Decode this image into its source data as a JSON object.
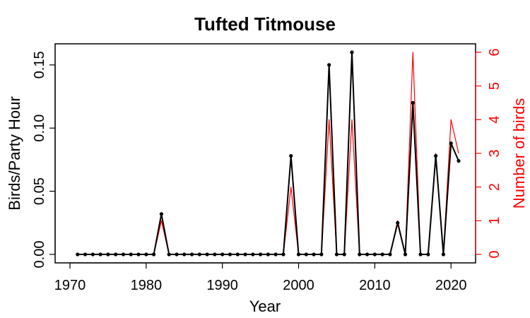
{
  "chart_data": {
    "type": "line",
    "title": "Tufted Titmouse",
    "xlabel": "Year",
    "ylabel": "Birds/Party Hour",
    "ylabel_right": "Number of birds",
    "xlim": [
      1970,
      2021
    ],
    "ylim": [
      0,
      0.16
    ],
    "ylim_right": [
      0,
      6
    ],
    "x_ticks": [
      1970,
      1980,
      1990,
      2000,
      2010,
      2020
    ],
    "y_ticks": [
      "0.00",
      "0.05",
      "0.10",
      "0.15"
    ],
    "y_ticks_right": [
      "0",
      "1",
      "2",
      "3",
      "4",
      "5",
      "6"
    ],
    "grid": false,
    "colors": {
      "left": "#000000",
      "right": "#ff0000"
    },
    "x": [
      1971,
      1972,
      1973,
      1974,
      1975,
      1976,
      1977,
      1978,
      1979,
      1980,
      1981,
      1982,
      1983,
      1984,
      1985,
      1986,
      1987,
      1988,
      1989,
      1990,
      1991,
      1992,
      1993,
      1994,
      1995,
      1996,
      1997,
      1998,
      1999,
      2000,
      2001,
      2002,
      2003,
      2004,
      2005,
      2006,
      2007,
      2008,
      2009,
      2010,
      2011,
      2012,
      2013,
      2014,
      2015,
      2016,
      2017,
      2018,
      2019,
      2020,
      2021
    ],
    "series": [
      {
        "axis": "left",
        "values": [
          0,
          0,
          0,
          0,
          0,
          0,
          0,
          0,
          0,
          0,
          0,
          0.032,
          0,
          0,
          0,
          0,
          0,
          0,
          0,
          0,
          0,
          0,
          0,
          0,
          0,
          0,
          0,
          0,
          0.078,
          0,
          0,
          0,
          0,
          0.15,
          0,
          0,
          0.16,
          0,
          0,
          0,
          0,
          0,
          0.025,
          0,
          0.12,
          0,
          0,
          0.078,
          0,
          0.088,
          0.074
        ]
      },
      {
        "axis": "right",
        "values": [
          0,
          0,
          0,
          0,
          0,
          0,
          0,
          0,
          0,
          0,
          0,
          1,
          0,
          0,
          0,
          0,
          0,
          0,
          0,
          0,
          0,
          0,
          0,
          0,
          0,
          0,
          0,
          0,
          2,
          0,
          0,
          0,
          0,
          4,
          0,
          0,
          4,
          0,
          0,
          0,
          0,
          0,
          1,
          0,
          6,
          0,
          0,
          3,
          0,
          4,
          3
        ]
      }
    ]
  }
}
